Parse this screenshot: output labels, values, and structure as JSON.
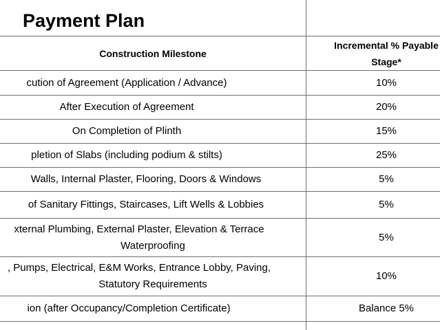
{
  "title": "Payment Plan",
  "headers": {
    "milestone": "Construction Milestone",
    "payable": "Incremental % Payable",
    "payable_line2": "Stage*"
  },
  "rows": [
    {
      "milestone": "cution of Agreement (Application / Advance)",
      "pct": "10%"
    },
    {
      "milestone": "After Execution of Agreement",
      "pct": "20%"
    },
    {
      "milestone": "On Completion of Plinth",
      "pct": "15%"
    },
    {
      "milestone": "pletion of Slabs (including podium & stilts)",
      "pct": "25%"
    },
    {
      "milestone": "Walls, Internal Plaster, Flooring, Doors & Windows",
      "pct": "5%"
    },
    {
      "milestone": "of Sanitary Fittings, Staircases, Lift Wells & Lobbies",
      "pct": "5%"
    },
    {
      "milestone": "xternal Plumbing, External Plaster, Elevation & Terrace",
      "milestone_line2": "Waterproofing",
      "pct": "5%"
    },
    {
      "milestone": ", Pumps, Electrical, E&M Works, Entrance Lobby, Paving,",
      "milestone_line2": "Statutory Requirements",
      "pct": "10%"
    },
    {
      "milestone": "ion (after Occupancy/Completion Certificate)",
      "pct": "Balance 5%"
    }
  ]
}
